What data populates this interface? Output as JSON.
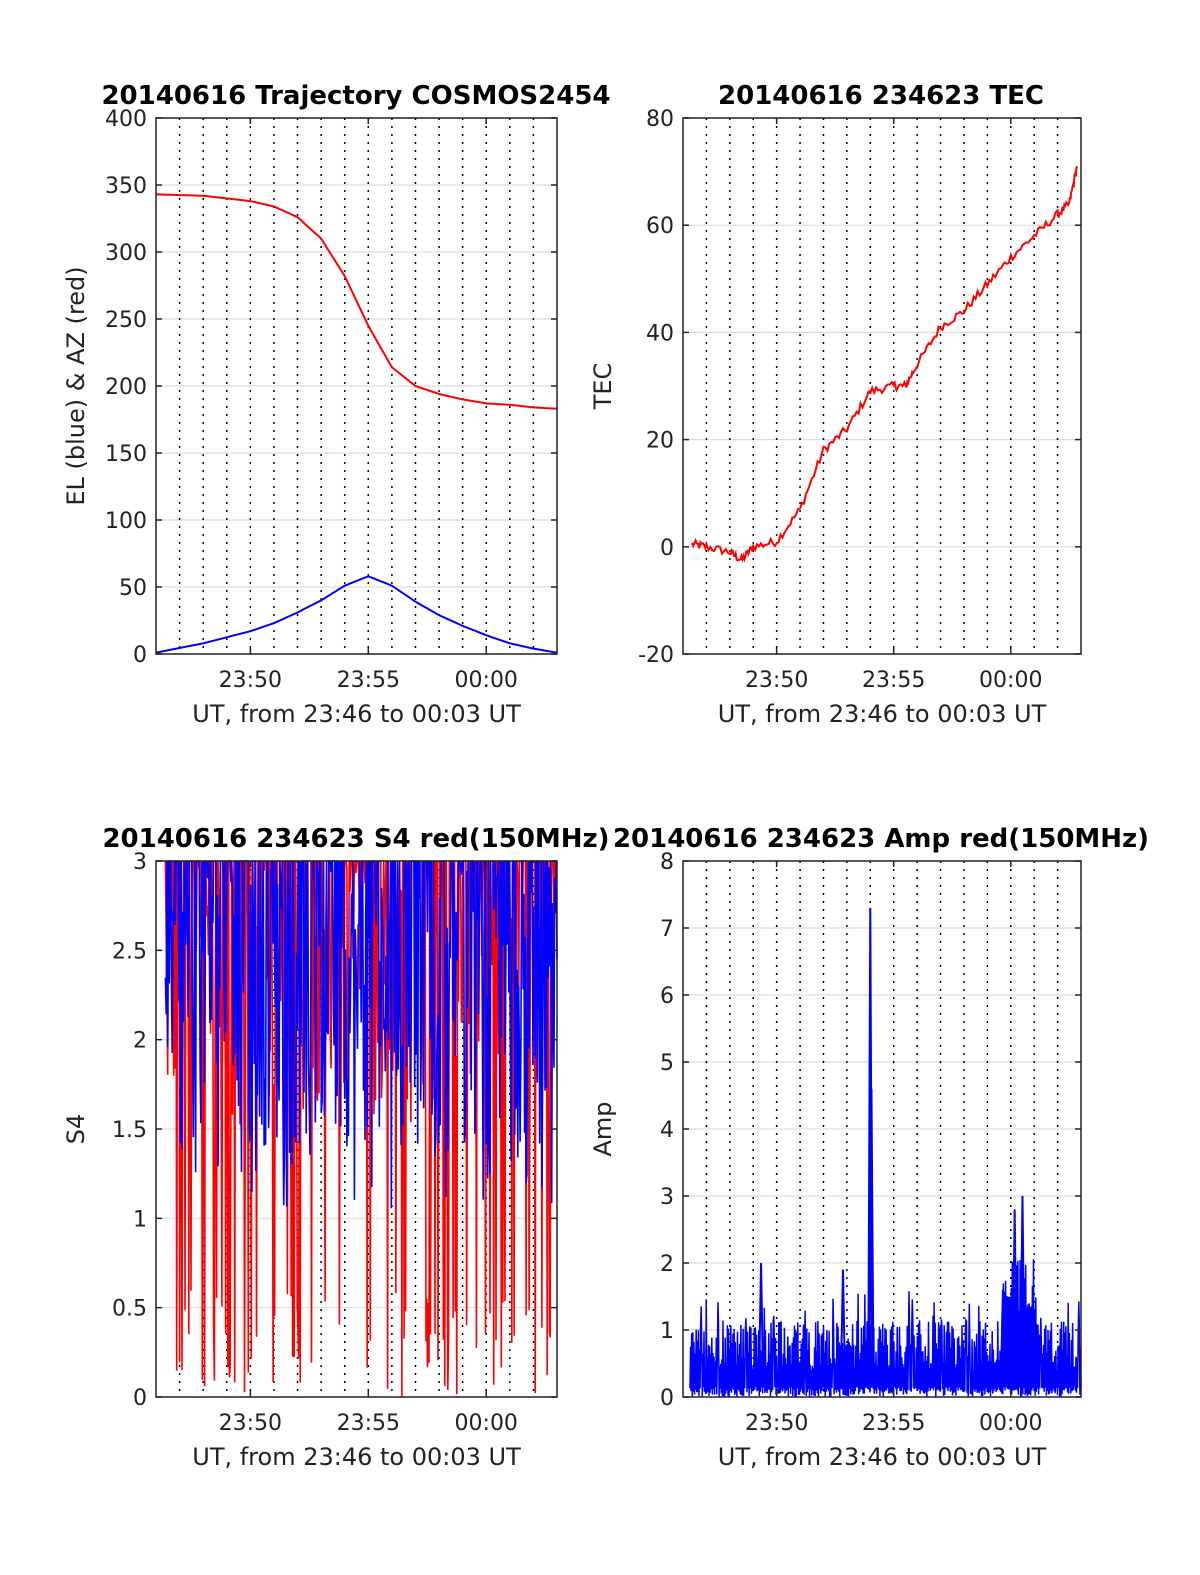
{
  "colors": {
    "el": "#0000ff",
    "az": "#ff0000",
    "tec": "#ff0000",
    "s4_red": "#ff0000",
    "s4_blue": "#0000ff",
    "amp": "#0000ff",
    "grid": "#dddddd"
  },
  "chart_data": [
    {
      "id": "traj",
      "type": "line",
      "title": "20140616 Trajectory COSMOS2454",
      "xlabel": "UT, from 23:46 to 00:03 UT",
      "ylabel": "EL (blue) & AZ (red)",
      "xlim": [
        "23:46",
        "00:03"
      ],
      "xticks": [
        "23:50",
        "23:55",
        "00:00"
      ],
      "ylim": [
        0,
        400
      ],
      "yticks": [
        "0",
        "50",
        "100",
        "150",
        "200",
        "250",
        "300",
        "350",
        "400"
      ],
      "grid": true,
      "series": [
        {
          "name": "AZ",
          "x": [
            "23:46",
            "23:48",
            "23:50",
            "23:51",
            "23:52",
            "23:53",
            "23:54",
            "23:55",
            "23:56",
            "23:57",
            "23:58",
            "23:59",
            "00:00",
            "00:01",
            "00:02",
            "00:03"
          ],
          "values": [
            343,
            342,
            338,
            334,
            326,
            310,
            282,
            245,
            214,
            200,
            194,
            190,
            187,
            186,
            184,
            183
          ]
        },
        {
          "name": "EL",
          "x": [
            "23:46",
            "23:48",
            "23:50",
            "23:51",
            "23:52",
            "23:53",
            "23:54",
            "23:55",
            "23:56",
            "23:57",
            "23:58",
            "23:59",
            "00:00",
            "00:01",
            "00:02",
            "00:03"
          ],
          "values": [
            1,
            8,
            17,
            23,
            31,
            40,
            51,
            58,
            51,
            39,
            29,
            21,
            14,
            8,
            4,
            1
          ]
        }
      ]
    },
    {
      "id": "tec",
      "type": "line",
      "title": "20140616 234623 TEC",
      "xlabel": "UT, from 23:46 to 00:03 UT",
      "ylabel": "TEC",
      "xlim": [
        "23:46",
        "00:03"
      ],
      "xticks": [
        "23:50",
        "23:55",
        "00:00"
      ],
      "ylim": [
        -20,
        80
      ],
      "yticks": [
        "-20",
        "0",
        "20",
        "40",
        "60",
        "80"
      ],
      "grid": true,
      "series": [
        {
          "name": "TEC",
          "x": [
            "23:46:23",
            "23:47:00",
            "23:48:00",
            "23:48:30",
            "23:49:00",
            "23:50:00",
            "23:51:00",
            "23:52:00",
            "23:53:00",
            "23:54:00",
            "23:55:00",
            "23:55:30",
            "23:56:00",
            "23:57:00",
            "23:58:00",
            "23:59:00",
            "00:00:00",
            "00:01:00",
            "00:02:00",
            "00:02:30",
            "00:02:50"
          ],
          "values": [
            0.5,
            0,
            -1,
            -2.5,
            0,
            1,
            7,
            18,
            22,
            29,
            30,
            30,
            34,
            41,
            44,
            49,
            54,
            58,
            62,
            64,
            71
          ]
        }
      ]
    },
    {
      "id": "s4",
      "type": "line",
      "title": "20140616 234623 S4 red(150MHz)",
      "xlabel": "UT, from 23:46 to 00:03 UT",
      "ylabel": "S4",
      "xlim": [
        "23:46",
        "00:03"
      ],
      "xticks": [
        "23:50",
        "23:55",
        "00:00"
      ],
      "ylim": [
        0,
        3
      ],
      "yticks": [
        "0",
        "0.5",
        "1",
        "1.5",
        "2",
        "2.5",
        "3"
      ],
      "grid": true,
      "series": [
        {
          "name": "red",
          "range_min": 0,
          "range_max": 3
        },
        {
          "name": "blue",
          "range_min": 1.05,
          "range_max": 3
        }
      ]
    },
    {
      "id": "amp",
      "type": "line",
      "title": "20140616 234623 Amp red(150MHz)",
      "xlabel": "UT, from 23:46 to 00:03 UT",
      "ylabel": "Amp",
      "xlim": [
        "23:46",
        "00:03"
      ],
      "xticks": [
        "23:50",
        "23:55",
        "00:00"
      ],
      "ylim": [
        0,
        8
      ],
      "yticks": [
        "0",
        "1",
        "2",
        "3",
        "4",
        "5",
        "6",
        "7",
        "8"
      ],
      "grid": true,
      "series": [
        {
          "name": "Amp",
          "baseline_max": 1.1,
          "peaks": [
            {
              "x": "23:54:00",
              "value": 7.3
            },
            {
              "x": "23:54:03",
              "value": 4.6
            },
            {
              "x": "00:00:30",
              "value": 3.0
            },
            {
              "x": "00:00:10",
              "value": 2.8
            },
            {
              "x": "23:49:20",
              "value": 2.0
            },
            {
              "x": "23:52:50",
              "value": 1.9
            },
            {
              "x": "23:59:40",
              "value": 1.6
            }
          ]
        }
      ]
    }
  ]
}
